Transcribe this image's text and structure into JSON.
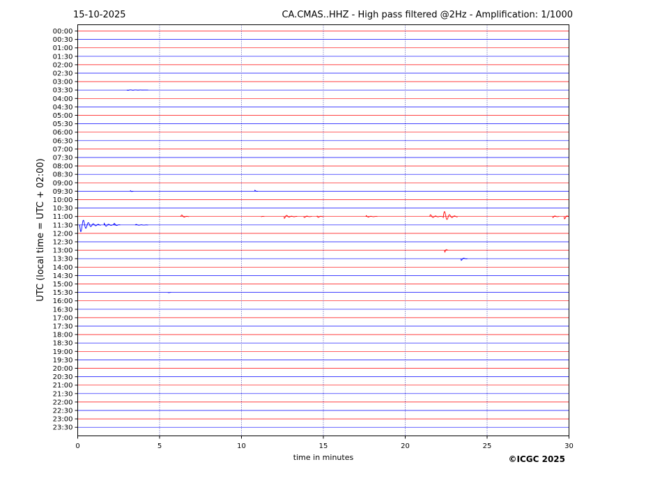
{
  "chart_data": {
    "type": "line",
    "date": "15-10-2025",
    "title": "CA.CMAS..HHZ - High pass filtered @2Hz - Amplification: 1/1000",
    "xlabel": "time in minutes",
    "ylabel": "UTC (local time = UTC + 02:00)",
    "xlim": [
      0,
      30
    ],
    "x_ticks": [
      0,
      5,
      10,
      15,
      20,
      25,
      30
    ],
    "y_tick_labels": [
      "00:00",
      "00:30",
      "01:00",
      "01:30",
      "02:00",
      "02:30",
      "03:00",
      "03:30",
      "04:00",
      "04:30",
      "05:00",
      "05:30",
      "06:00",
      "06:30",
      "07:00",
      "07:30",
      "08:00",
      "08:30",
      "09:00",
      "09:30",
      "10:00",
      "10:30",
      "11:00",
      "11:30",
      "12:00",
      "12:30",
      "13:00",
      "13:30",
      "14:00",
      "14:30",
      "15:00",
      "15:30",
      "16:00",
      "16:30",
      "17:00",
      "17:30",
      "18:00",
      "18:30",
      "19:00",
      "19:30",
      "20:00",
      "20:30",
      "21:00",
      "21:30",
      "22:00",
      "22:30",
      "23:00",
      "23:30"
    ],
    "trace_colors": [
      "#ff0000",
      "#0000ff"
    ],
    "grid": "vertical dotted lines at 5-minute intervals",
    "events": [
      {
        "row": "03:30",
        "minute": 3.0,
        "amplitude": 0.5,
        "duration": 1.3
      },
      {
        "row": "09:30",
        "minute": 3.2,
        "amplitude": 2,
        "duration": 0.2
      },
      {
        "row": "09:30",
        "minute": 10.8,
        "amplitude": 2,
        "duration": 0.2
      },
      {
        "row": "11:00",
        "minute": 6.3,
        "amplitude": 3,
        "duration": 0.5
      },
      {
        "row": "11:00",
        "minute": 11.2,
        "amplitude": 1,
        "duration": 0.2
      },
      {
        "row": "11:00",
        "minute": 12.6,
        "amplitude": 3,
        "duration": 0.8
      },
      {
        "row": "11:00",
        "minute": 13.8,
        "amplitude": 2,
        "duration": 0.5
      },
      {
        "row": "11:00",
        "minute": 14.6,
        "amplitude": 2.5,
        "duration": 0.4
      },
      {
        "row": "11:00",
        "minute": 17.6,
        "amplitude": 1.5,
        "duration": 0.7
      },
      {
        "row": "11:00",
        "minute": 21.5,
        "amplitude": 3,
        "duration": 0.8
      },
      {
        "row": "11:00",
        "minute": 22.3,
        "amplitude": 10,
        "duration": 0.9
      },
      {
        "row": "11:00",
        "minute": 29.0,
        "amplitude": 2,
        "duration": 0.4
      },
      {
        "row": "11:00",
        "minute": 29.7,
        "amplitude": 5,
        "duration": 0.4
      },
      {
        "row": "11:30",
        "minute": 0.1,
        "amplitude": 12,
        "duration": 1.3
      },
      {
        "row": "11:30",
        "minute": 1.6,
        "amplitude": 3,
        "duration": 0.8
      },
      {
        "row": "11:30",
        "minute": 2.2,
        "amplitude": 3,
        "duration": 0.4
      },
      {
        "row": "11:30",
        "minute": 3.5,
        "amplitude": 1,
        "duration": 0.8
      },
      {
        "row": "13:00",
        "minute": 22.4,
        "amplitude": 6,
        "duration": 0.2
      },
      {
        "row": "13:30",
        "minute": 23.4,
        "amplitude": 3,
        "duration": 0.4
      },
      {
        "row": "15:30",
        "minute": 5.5,
        "amplitude": 1,
        "duration": 0.2
      }
    ]
  },
  "copyright": "©ICGC 2025"
}
